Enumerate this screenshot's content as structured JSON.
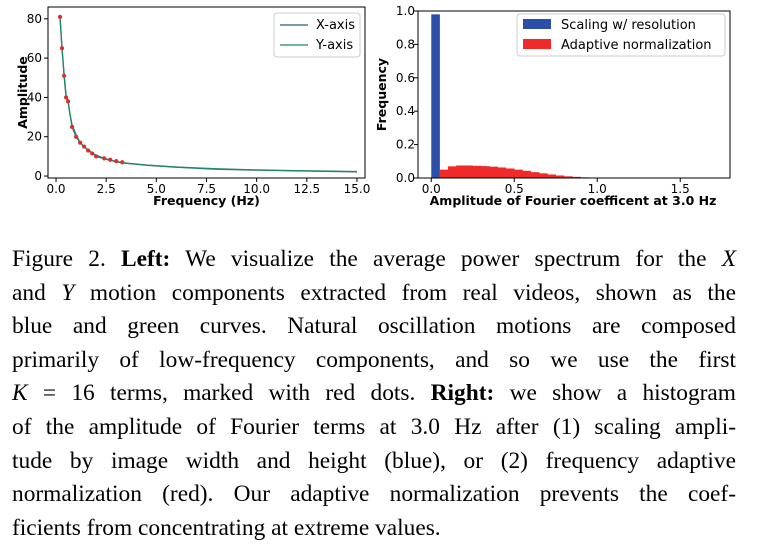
{
  "chart_data": [
    {
      "type": "line",
      "xlabel": "Frequency (Hz)",
      "ylabel": "Amplitude",
      "xlim": [
        -0.4,
        15.4
      ],
      "ylim": [
        -1,
        86
      ],
      "xticks": [
        0.0,
        2.5,
        5.0,
        7.5,
        10.0,
        12.5,
        15.0
      ],
      "xtick_labels": [
        "0.0",
        "2.5",
        "5.0",
        "7.5",
        "10.0",
        "12.5",
        "15.0"
      ],
      "yticks": [
        0,
        20,
        40,
        60,
        80
      ],
      "ytick_labels": [
        "0",
        "20",
        "40",
        "60",
        "80"
      ],
      "legend": "top-right",
      "series": [
        {
          "name": "X-axis",
          "color": "#2b5f73",
          "x": [
            0.2,
            0.3,
            0.4,
            0.5,
            0.6,
            0.7,
            0.8,
            1.0,
            1.2,
            1.5,
            2.0,
            2.5,
            3.0,
            3.5,
            4.5,
            6.0,
            8.0,
            10.0,
            12.0,
            15.0
          ],
          "y": [
            81,
            65,
            51,
            40,
            38,
            31,
            25,
            20,
            17,
            14,
            10,
            8.5,
            7.2,
            6.5,
            5.5,
            4.5,
            3.5,
            3.0,
            2.6,
            2.1
          ]
        },
        {
          "name": "Y-axis",
          "color": "#1f8a6a",
          "x": [
            0.2,
            0.3,
            0.4,
            0.5,
            0.6,
            0.7,
            0.8,
            1.0,
            1.2,
            1.5,
            2.0,
            2.5,
            3.0,
            3.5,
            4.5,
            6.0,
            8.0,
            10.0,
            12.0,
            15.0
          ],
          "y": [
            81,
            65,
            52,
            41,
            38,
            31,
            26,
            21,
            17,
            14,
            10.5,
            8.7,
            7.4,
            6.6,
            5.6,
            4.6,
            3.7,
            3.1,
            2.7,
            2.3
          ]
        }
      ],
      "markers": {
        "color": "#d9302a",
        "x": [
          0.2,
          0.3,
          0.4,
          0.5,
          0.6,
          0.8,
          1.0,
          1.2,
          1.4,
          1.6,
          1.8,
          2.0,
          2.4,
          2.7,
          3.0,
          3.3
        ],
        "y": [
          81,
          65,
          51,
          40,
          38,
          25,
          20,
          17,
          15,
          13,
          11.5,
          10,
          9,
          8.3,
          7.6,
          7.0
        ]
      }
    },
    {
      "type": "bar",
      "xlabel": "Amplitude of Fourier coefficent at 3.0 Hz",
      "ylabel": "Frequency",
      "xlim": [
        -0.08,
        1.8
      ],
      "ylim": [
        0,
        1.0
      ],
      "xticks": [
        0.0,
        0.5,
        1.0,
        1.5
      ],
      "xtick_labels": [
        "0.0",
        "0.5",
        "1.0",
        "1.5"
      ],
      "yticks": [
        0.0,
        0.2,
        0.4,
        0.6,
        0.8,
        1.0
      ],
      "ytick_labels": [
        "0.0",
        "0.2",
        "0.4",
        "0.6",
        "0.8",
        "1.0"
      ],
      "legend": "top-right",
      "series": [
        {
          "name": "Scaling w/ resolution",
          "color": "#2b4ea8",
          "bins": [
            [
              0.0,
              0.05,
              0.98
            ]
          ]
        },
        {
          "name": "Adaptive normalization",
          "color": "#ee2a2a",
          "bins": [
            [
              0.05,
              0.1,
              0.05
            ],
            [
              0.1,
              0.15,
              0.07
            ],
            [
              0.15,
              0.2,
              0.075
            ],
            [
              0.2,
              0.25,
              0.075
            ],
            [
              0.25,
              0.3,
              0.073
            ],
            [
              0.3,
              0.35,
              0.071
            ],
            [
              0.35,
              0.4,
              0.068
            ],
            [
              0.4,
              0.45,
              0.063
            ],
            [
              0.45,
              0.5,
              0.057
            ],
            [
              0.5,
              0.55,
              0.05
            ],
            [
              0.55,
              0.6,
              0.043
            ],
            [
              0.6,
              0.65,
              0.035
            ],
            [
              0.65,
              0.7,
              0.028
            ],
            [
              0.7,
              0.75,
              0.021
            ],
            [
              0.75,
              0.8,
              0.015
            ],
            [
              0.8,
              0.85,
              0.01
            ],
            [
              0.85,
              0.9,
              0.007
            ],
            [
              0.9,
              0.95,
              0.004
            ],
            [
              0.95,
              1.0,
              0.002
            ]
          ]
        }
      ]
    }
  ],
  "caption": {
    "lines": [
      [
        {
          "t": "Figure 2. "
        },
        {
          "t": "Left:",
          "b": true
        },
        {
          "t": " We visualize the average power spectrum for the "
        },
        {
          "t": "X",
          "i": true
        }
      ],
      [
        {
          "t": "and "
        },
        {
          "t": "Y",
          "i": true
        },
        {
          "t": " motion components extracted from real videos, shown as the"
        }
      ],
      [
        {
          "t": "blue and green curves. Natural oscillation motions are composed"
        }
      ],
      [
        {
          "t": "primarily of low-frequency components, and so we use the first"
        }
      ],
      [
        {
          "t": "K",
          "i": true
        },
        {
          "t": " = 16 terms, marked with red dots. "
        },
        {
          "t": "Right:",
          "b": true
        },
        {
          "t": " we show a histogram"
        }
      ],
      [
        {
          "t": "of the amplitude of Fourier terms at 3.0 Hz after (1) scaling ampli-"
        }
      ],
      [
        {
          "t": "tude by image width and height (blue), or (2) frequency adaptive"
        }
      ],
      [
        {
          "t": "normalization (red). Our adaptive normalization prevents the coef-"
        }
      ],
      [
        {
          "t": "ficients from concentrating at extreme values."
        }
      ]
    ]
  }
}
